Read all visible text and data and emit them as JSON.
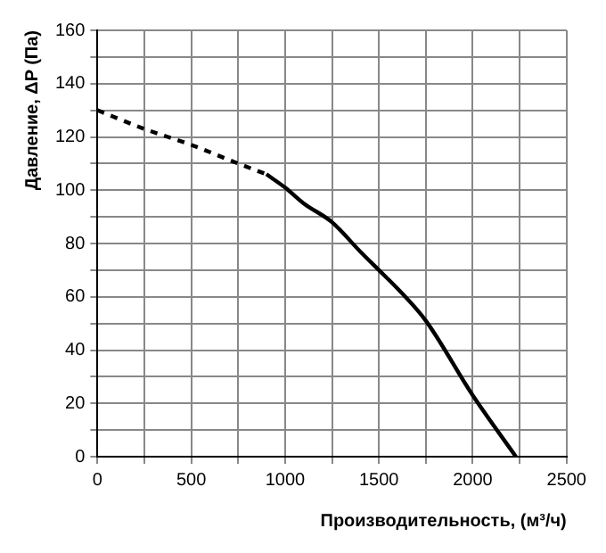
{
  "chart_data": {
    "type": "line",
    "xlabel": "Производительность, (м³/ч)",
    "ylabel": "Давление, ΔP (Па)",
    "xlim": [
      0,
      2500
    ],
    "ylim": [
      0,
      160
    ],
    "xticks": [
      0,
      {
        "value": 250,
        "label": null
      },
      500,
      {
        "value": 750,
        "label": null
      },
      1000,
      {
        "value": 1250,
        "label": null
      },
      1500,
      {
        "value": 1750,
        "label": null
      },
      2000,
      {
        "value": 2250,
        "label": null
      },
      2500
    ],
    "yticks": [
      0,
      {
        "value": 10,
        "label": null
      },
      20,
      {
        "value": 30,
        "label": null
      },
      40,
      {
        "value": 50,
        "label": null
      },
      60,
      {
        "value": 70,
        "label": null
      },
      80,
      {
        "value": 90,
        "label": null
      },
      100,
      {
        "value": 110,
        "label": null
      },
      120,
      {
        "value": 130,
        "label": null
      },
      140,
      {
        "value": 150,
        "label": null
      },
      160
    ],
    "grid": true,
    "legend": false,
    "marker": "none",
    "series": [
      {
        "color": "#000000",
        "line_style": "dashed",
        "x": [
          0,
          250,
          500,
          750,
          900
        ],
        "values": [
          130,
          123,
          117,
          110,
          106
        ]
      },
      {
        "color": "#000000",
        "line_style": "solid",
        "x": [
          900,
          1000,
          1100,
          1250,
          1400,
          1500,
          1600,
          1750,
          2000,
          2230
        ],
        "values": [
          106,
          101,
          95,
          88,
          77,
          70,
          63,
          51,
          23,
          0
        ]
      }
    ]
  }
}
